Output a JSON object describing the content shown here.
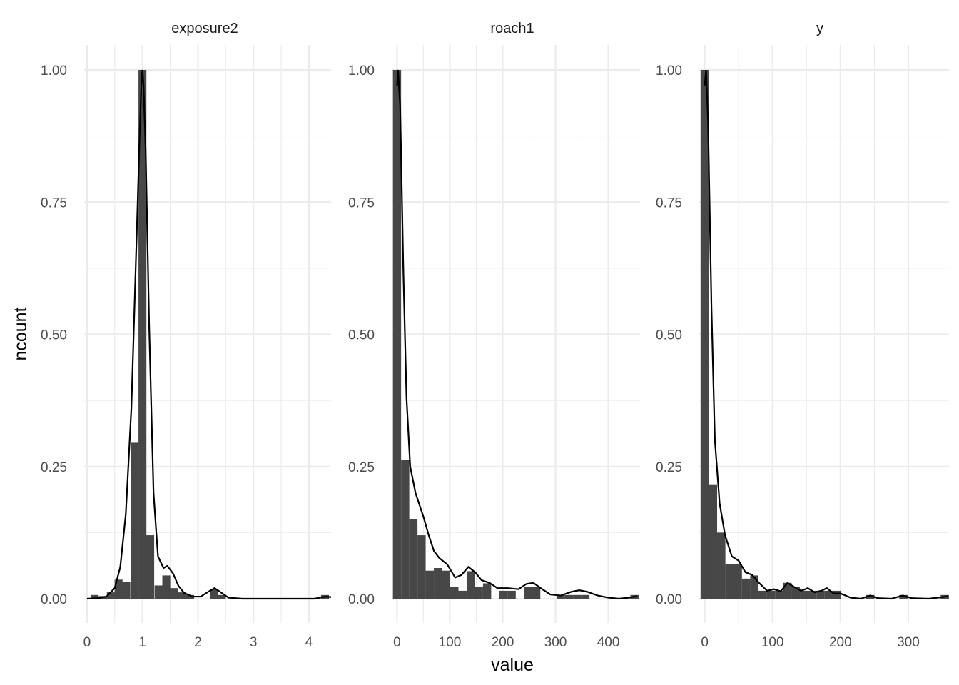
{
  "chart_data": {
    "type": "bar",
    "subtype": "faceted-histogram-with-density",
    "xlabel": "value",
    "ylabel": "ncount",
    "ylim": [
      0,
      1
    ],
    "y_ticks": [
      0,
      0.25,
      0.5,
      0.75,
      1
    ],
    "y_tick_labels": [
      "0.00",
      "0.25",
      "0.50",
      "0.75",
      "1.00"
    ],
    "grid": true,
    "colors": {
      "bar": "#474747",
      "line": "#000000",
      "grid": "#ebebeb"
    },
    "facets": [
      {
        "name": "exposure2",
        "xlim": [
          -0.05,
          4.4
        ],
        "x_ticks": [
          0,
          1,
          2,
          3,
          4
        ],
        "x_tick_labels": [
          "0",
          "1",
          "2",
          "3",
          "4"
        ],
        "bin_width": 0.143,
        "bins": [
          {
            "x": 0.14,
            "y": 0.007
          },
          {
            "x": 0.29,
            "y": 0.005
          },
          {
            "x": 0.43,
            "y": 0.012
          },
          {
            "x": 0.57,
            "y": 0.036
          },
          {
            "x": 0.71,
            "y": 0.032
          },
          {
            "x": 0.86,
            "y": 0.295
          },
          {
            "x": 1.0,
            "y": 1.0
          },
          {
            "x": 1.14,
            "y": 0.12
          },
          {
            "x": 1.29,
            "y": 0.025
          },
          {
            "x": 1.43,
            "y": 0.044
          },
          {
            "x": 1.57,
            "y": 0.02
          },
          {
            "x": 1.71,
            "y": 0.012
          },
          {
            "x": 1.86,
            "y": 0.007
          },
          {
            "x": 2.29,
            "y": 0.018
          },
          {
            "x": 2.43,
            "y": 0.007
          },
          {
            "x": 4.29,
            "y": 0.007
          }
        ],
        "density": [
          [
            0.0,
            0.0
          ],
          [
            0.2,
            0.001
          ],
          [
            0.35,
            0.004
          ],
          [
            0.5,
            0.02
          ],
          [
            0.6,
            0.06
          ],
          [
            0.7,
            0.16
          ],
          [
            0.8,
            0.36
          ],
          [
            0.9,
            0.7
          ],
          [
            0.95,
            0.88
          ],
          [
            0.98,
            0.97
          ],
          [
            1.0,
            1.0
          ],
          [
            1.02,
            0.97
          ],
          [
            1.06,
            0.84
          ],
          [
            1.12,
            0.52
          ],
          [
            1.2,
            0.2
          ],
          [
            1.28,
            0.08
          ],
          [
            1.38,
            0.058
          ],
          [
            1.45,
            0.062
          ],
          [
            1.55,
            0.048
          ],
          [
            1.65,
            0.024
          ],
          [
            1.75,
            0.011
          ],
          [
            1.9,
            0.004
          ],
          [
            2.05,
            0.004
          ],
          [
            2.2,
            0.014
          ],
          [
            2.3,
            0.02
          ],
          [
            2.4,
            0.013
          ],
          [
            2.55,
            0.002
          ],
          [
            2.8,
            0.0
          ],
          [
            3.5,
            0.0
          ],
          [
            4.1,
            0.0
          ],
          [
            4.3,
            0.004
          ],
          [
            4.4,
            0.003
          ]
        ]
      },
      {
        "name": "roach1",
        "xlim": [
          -10,
          460
        ],
        "x_ticks": [
          0,
          100,
          200,
          300,
          400
        ],
        "x_tick_labels": [
          "0",
          "100",
          "200",
          "300",
          "400"
        ],
        "bin_width": 15.5,
        "bins": [
          {
            "x": 0,
            "y": 1.0
          },
          {
            "x": 15.5,
            "y": 0.262
          },
          {
            "x": 31,
            "y": 0.15
          },
          {
            "x": 46.5,
            "y": 0.12
          },
          {
            "x": 62,
            "y": 0.053
          },
          {
            "x": 77.5,
            "y": 0.058
          },
          {
            "x": 93,
            "y": 0.053
          },
          {
            "x": 108.5,
            "y": 0.022
          },
          {
            "x": 124,
            "y": 0.015
          },
          {
            "x": 139.5,
            "y": 0.052
          },
          {
            "x": 155,
            "y": 0.022
          },
          {
            "x": 170.5,
            "y": 0.029
          },
          {
            "x": 201.5,
            "y": 0.015
          },
          {
            "x": 217,
            "y": 0.015
          },
          {
            "x": 248,
            "y": 0.022
          },
          {
            "x": 263.5,
            "y": 0.022
          },
          {
            "x": 310,
            "y": 0.007
          },
          {
            "x": 325.5,
            "y": 0.007
          },
          {
            "x": 341,
            "y": 0.007
          },
          {
            "x": 356.5,
            "y": 0.007
          },
          {
            "x": 449.5,
            "y": 0.007
          }
        ],
        "density": [
          [
            0,
            0.97
          ],
          [
            2,
            1.0
          ],
          [
            6,
            0.93
          ],
          [
            12,
            0.62
          ],
          [
            18,
            0.38
          ],
          [
            25,
            0.25
          ],
          [
            35,
            0.2
          ],
          [
            50,
            0.155
          ],
          [
            60,
            0.12
          ],
          [
            70,
            0.09
          ],
          [
            80,
            0.077
          ],
          [
            95,
            0.065
          ],
          [
            110,
            0.04
          ],
          [
            122,
            0.045
          ],
          [
            135,
            0.06
          ],
          [
            148,
            0.05
          ],
          [
            160,
            0.035
          ],
          [
            175,
            0.03
          ],
          [
            190,
            0.02
          ],
          [
            210,
            0.02
          ],
          [
            230,
            0.018
          ],
          [
            245,
            0.028
          ],
          [
            258,
            0.03
          ],
          [
            272,
            0.02
          ],
          [
            290,
            0.008
          ],
          [
            310,
            0.006
          ],
          [
            330,
            0.013
          ],
          [
            345,
            0.016
          ],
          [
            360,
            0.013
          ],
          [
            380,
            0.006
          ],
          [
            400,
            0.002
          ],
          [
            420,
            0.0
          ],
          [
            440,
            0.002
          ],
          [
            455,
            0.005
          ]
        ]
      },
      {
        "name": "y",
        "xlim": [
          -8,
          360
        ],
        "x_ticks": [
          0,
          100,
          200,
          300
        ],
        "x_tick_labels": [
          "0",
          "100",
          "200",
          "300"
        ],
        "bin_width": 12.2,
        "bins": [
          {
            "x": 0,
            "y": 1.0
          },
          {
            "x": 12.2,
            "y": 0.215
          },
          {
            "x": 24.4,
            "y": 0.125
          },
          {
            "x": 36.6,
            "y": 0.065
          },
          {
            "x": 48.8,
            "y": 0.065
          },
          {
            "x": 61,
            "y": 0.038
          },
          {
            "x": 73.2,
            "y": 0.044
          },
          {
            "x": 85.4,
            "y": 0.015
          },
          {
            "x": 97.6,
            "y": 0.015
          },
          {
            "x": 109.8,
            "y": 0.015
          },
          {
            "x": 122,
            "y": 0.03
          },
          {
            "x": 134.2,
            "y": 0.022
          },
          {
            "x": 146.4,
            "y": 0.015
          },
          {
            "x": 158.6,
            "y": 0.015
          },
          {
            "x": 170.8,
            "y": 0.015
          },
          {
            "x": 183,
            "y": 0.015
          },
          {
            "x": 195.2,
            "y": 0.015
          },
          {
            "x": 244,
            "y": 0.007
          },
          {
            "x": 292.8,
            "y": 0.007
          },
          {
            "x": 353.8,
            "y": 0.007
          }
        ],
        "density": [
          [
            0,
            0.97
          ],
          [
            2,
            1.0
          ],
          [
            5,
            0.9
          ],
          [
            10,
            0.55
          ],
          [
            15,
            0.3
          ],
          [
            22,
            0.18
          ],
          [
            30,
            0.12
          ],
          [
            40,
            0.08
          ],
          [
            50,
            0.072
          ],
          [
            60,
            0.05
          ],
          [
            70,
            0.045
          ],
          [
            80,
            0.03
          ],
          [
            92,
            0.015
          ],
          [
            102,
            0.018
          ],
          [
            112,
            0.014
          ],
          [
            122,
            0.03
          ],
          [
            132,
            0.022
          ],
          [
            142,
            0.015
          ],
          [
            152,
            0.02
          ],
          [
            162,
            0.012
          ],
          [
            172,
            0.015
          ],
          [
            180,
            0.02
          ],
          [
            190,
            0.01
          ],
          [
            200,
            0.01
          ],
          [
            215,
            0.002
          ],
          [
            230,
            0.0
          ],
          [
            244,
            0.006
          ],
          [
            255,
            0.001
          ],
          [
            275,
            0.0
          ],
          [
            292,
            0.006
          ],
          [
            305,
            0.001
          ],
          [
            330,
            0.0
          ],
          [
            350,
            0.003
          ],
          [
            358,
            0.005
          ]
        ]
      }
    ]
  }
}
